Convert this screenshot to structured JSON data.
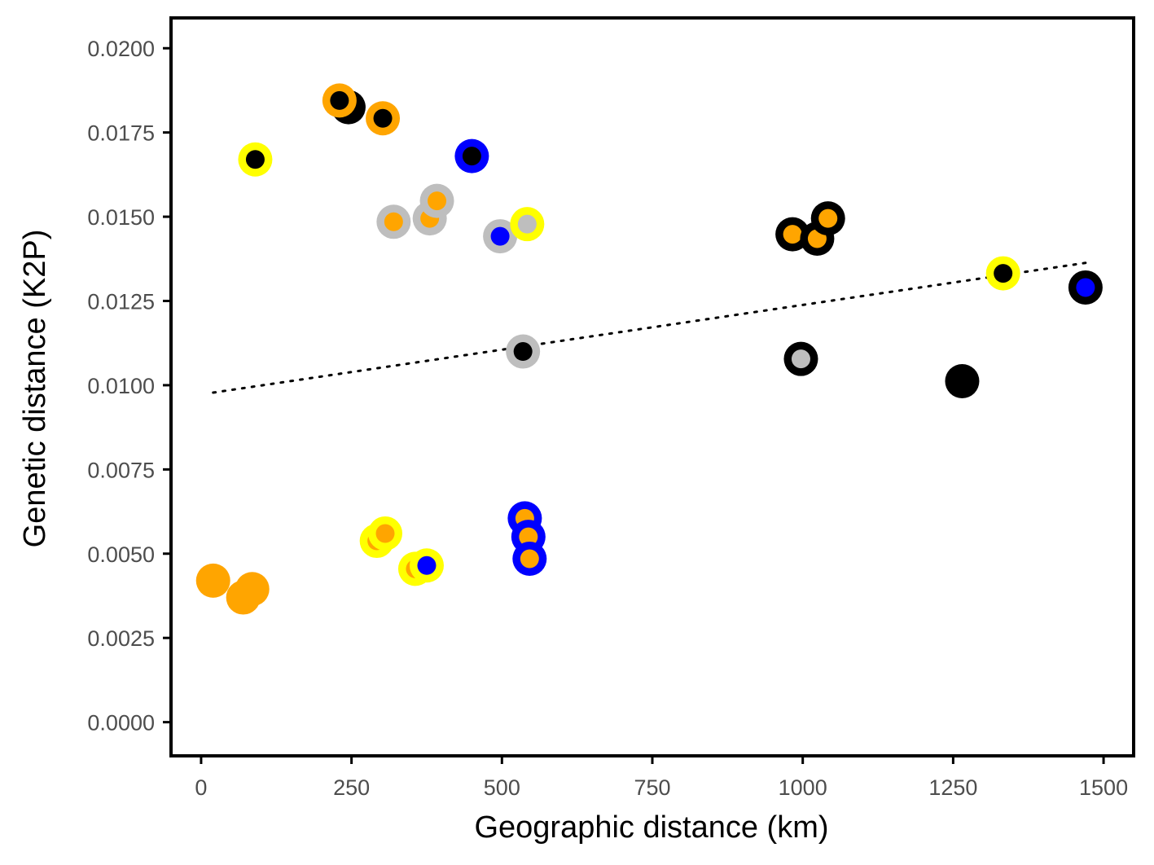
{
  "chart_data": {
    "type": "scatter",
    "title": "",
    "xlabel": "Geographic distance (km)",
    "ylabel": "Genetic distance (K2P)",
    "xlim": [
      -50,
      1550
    ],
    "ylim": [
      -0.001,
      0.0209
    ],
    "x_ticks": [
      0,
      250,
      500,
      750,
      1000,
      1250,
      1500
    ],
    "x_tick_labels": [
      "0",
      "250",
      "500",
      "750",
      "1000",
      "1250",
      "1500"
    ],
    "y_ticks": [
      0.0,
      0.0025,
      0.005,
      0.0075,
      0.01,
      0.0125,
      0.015,
      0.0175,
      0.02
    ],
    "y_tick_labels": [
      "0.0000",
      "0.0025",
      "0.0050",
      "0.0075",
      "0.0100",
      "0.0125",
      "0.0150",
      "0.0175",
      "0.0200"
    ],
    "grid": false,
    "legend": "none",
    "trendline": {
      "style": "dotted",
      "x": [
        20,
        1470
      ],
      "y": [
        0.00978,
        0.01363
      ]
    },
    "colors": {
      "orange": "#ffa500",
      "black": "#000000",
      "yellow": "#ffff00",
      "blue": "#0000ff",
      "grey": "#bebebe"
    },
    "points": [
      {
        "x": 20,
        "y": 0.0042,
        "outer": "orange",
        "inner": "orange"
      },
      {
        "x": 70,
        "y": 0.0037,
        "outer": "orange",
        "inner": "orange"
      },
      {
        "x": 85,
        "y": 0.00395,
        "outer": "orange",
        "inner": "orange"
      },
      {
        "x": 90,
        "y": 0.0167,
        "outer": "yellow",
        "inner": "black"
      },
      {
        "x": 245,
        "y": 0.01825,
        "outer": "black",
        "inner": "black"
      },
      {
        "x": 230,
        "y": 0.01845,
        "outer": "orange",
        "inner": "black"
      },
      {
        "x": 302,
        "y": 0.01792,
        "outer": "orange",
        "inner": "black"
      },
      {
        "x": 450,
        "y": 0.0168,
        "outer": "blue",
        "inner": "black"
      },
      {
        "x": 320,
        "y": 0.01485,
        "outer": "grey",
        "inner": "orange"
      },
      {
        "x": 380,
        "y": 0.01495,
        "outer": "grey",
        "inner": "orange"
      },
      {
        "x": 392,
        "y": 0.01547,
        "outer": "grey",
        "inner": "orange"
      },
      {
        "x": 497,
        "y": 0.01442,
        "outer": "grey",
        "inner": "blue"
      },
      {
        "x": 542,
        "y": 0.01478,
        "outer": "yellow",
        "inner": "grey"
      },
      {
        "x": 535,
        "y": 0.011,
        "outer": "grey",
        "inner": "black"
      },
      {
        "x": 292,
        "y": 0.00538,
        "outer": "yellow",
        "inner": "orange"
      },
      {
        "x": 306,
        "y": 0.0056,
        "outer": "yellow",
        "inner": "orange"
      },
      {
        "x": 356,
        "y": 0.00455,
        "outer": "yellow",
        "inner": "orange"
      },
      {
        "x": 375,
        "y": 0.00465,
        "outer": "yellow",
        "inner": "blue"
      },
      {
        "x": 538,
        "y": 0.00605,
        "outer": "blue",
        "inner": "orange"
      },
      {
        "x": 544,
        "y": 0.0055,
        "outer": "blue",
        "inner": "orange"
      },
      {
        "x": 546,
        "y": 0.00485,
        "outer": "blue",
        "inner": "orange"
      },
      {
        "x": 983,
        "y": 0.01448,
        "outer": "black",
        "inner": "orange"
      },
      {
        "x": 1024,
        "y": 0.01435,
        "outer": "black",
        "inner": "orange"
      },
      {
        "x": 1042,
        "y": 0.01495,
        "outer": "black",
        "inner": "orange"
      },
      {
        "x": 997,
        "y": 0.01078,
        "outer": "black",
        "inner": "grey"
      },
      {
        "x": 1265,
        "y": 0.01012,
        "outer": "black",
        "inner": "black"
      },
      {
        "x": 1333,
        "y": 0.01332,
        "outer": "yellow",
        "inner": "black"
      },
      {
        "x": 1470,
        "y": 0.0129,
        "outer": "black",
        "inner": "blue"
      }
    ]
  }
}
